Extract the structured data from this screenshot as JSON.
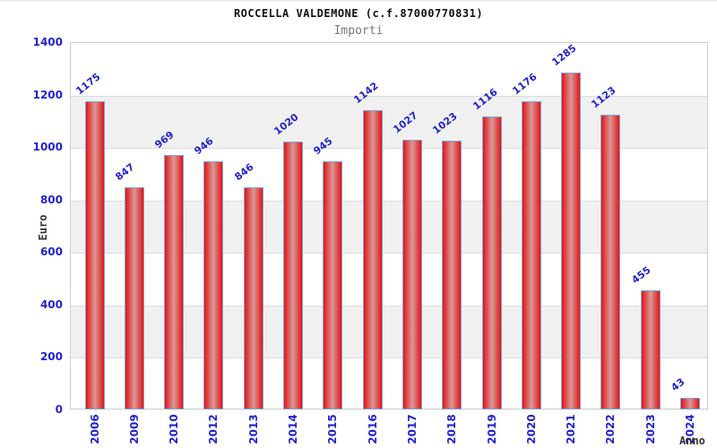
{
  "chart_data": {
    "type": "bar",
    "title": "ROCCELLA VALDEMONE (c.f.87000770831)",
    "subtitle": "Importi",
    "xlabel": "Anno",
    "ylabel": "Euro",
    "categories": [
      "2006",
      "2009",
      "2010",
      "2012",
      "2013",
      "2014",
      "2015",
      "2016",
      "2017",
      "2018",
      "2019",
      "2020",
      "2021",
      "2022",
      "2023",
      "2024"
    ],
    "values": [
      1175,
      847,
      969,
      946,
      846,
      1020,
      945,
      1142,
      1027,
      1023,
      1116,
      1176,
      1285,
      1123,
      455,
      43
    ],
    "ylim": [
      0,
      1400
    ],
    "ytick_step": 200,
    "ytick_labels": [
      "0",
      "200",
      "400",
      "600",
      "800",
      "1000",
      "1200",
      "1400"
    ],
    "grid": true,
    "gray_bands": [
      [
        200,
        400
      ],
      [
        600,
        800
      ],
      [
        1000,
        1200
      ]
    ],
    "legend": "none",
    "colors": {
      "tick_label": "#2222cc",
      "value_label": "#2222cc",
      "bar_edge_fill": "#e51414",
      "bar_mid_fill": "#d89898",
      "bar_border": "#7aa7dc",
      "band": "#f0f0f0",
      "gridline": "#dcdcdc",
      "plot_border": "#cccccc",
      "title": "#111111",
      "subtitle": "#777777",
      "axis_title": "#333333",
      "background": "#ffffff"
    }
  }
}
